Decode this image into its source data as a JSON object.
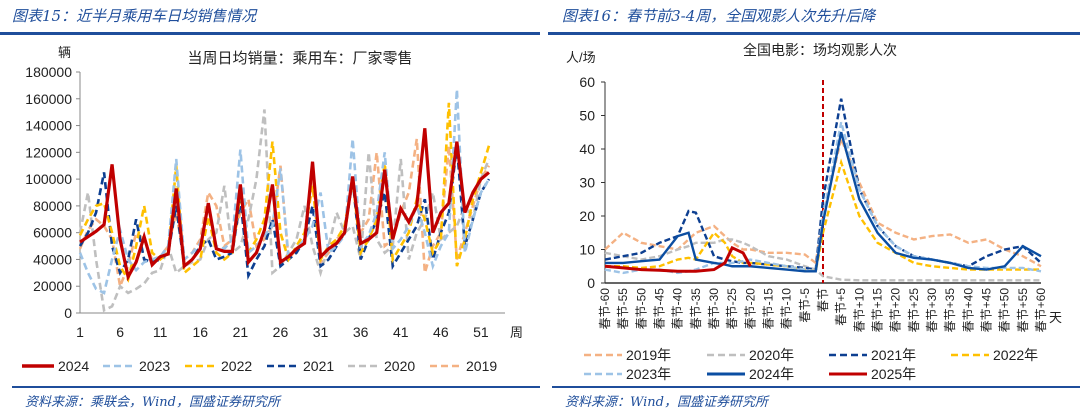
{
  "left": {
    "header": "图表15：近半月乘用车日均销售情况",
    "source": "资料来源：乘联会，Wind，国盛证券研究所"
  },
  "right": {
    "header": "图表16：春节前3-4周，全国观影人次先升后降",
    "source": "资料来源：Wind，国盛证券研究所"
  },
  "chart_data": [
    {
      "type": "line",
      "title": "当周日均销量：乘用车：厂家零售",
      "ylabel": "辆",
      "xlabel": "周",
      "ylim": [
        0,
        180000
      ],
      "yticks": [
        0,
        20000,
        40000,
        60000,
        80000,
        100000,
        120000,
        140000,
        160000,
        180000
      ],
      "xticks": [
        1,
        6,
        11,
        16,
        21,
        26,
        31,
        36,
        41,
        46,
        51
      ],
      "xlim": [
        1,
        54
      ],
      "grid": false,
      "legend": "bottom",
      "x_start": 1,
      "series": [
        {
          "name": "2024",
          "color": "#C00000",
          "style": "solid",
          "values": [
            53000,
            57000,
            61000,
            66000,
            111000,
            55000,
            27000,
            38000,
            57000,
            36000,
            42000,
            44000,
            93000,
            35000,
            40000,
            48000,
            82000,
            48000,
            46000,
            46000,
            96000,
            38000,
            45000,
            62000,
            96000,
            38000,
            42000,
            48000,
            52000,
            113000,
            42000,
            48000,
            52000,
            60000,
            102000,
            52000,
            55000,
            60000,
            107000,
            55000,
            78000,
            68000,
            80000,
            138000,
            60000,
            75000,
            82000,
            128000,
            75000,
            90000,
            100000,
            105000
          ]
        },
        {
          "name": "2023",
          "color": "#9DC3E6",
          "style": "dashed",
          "values": [
            45000,
            30000,
            18000,
            15000,
            40000,
            62000,
            40000,
            32000,
            38000,
            40000,
            42000,
            50000,
            115000,
            40000,
            45000,
            52000,
            80000,
            50000,
            48000,
            55000,
            122000,
            45000,
            50000,
            58000,
            65000,
            108000,
            42000,
            48000,
            55000,
            65000,
            90000,
            45000,
            50000,
            58000,
            130000,
            50000,
            58000,
            75000,
            120000,
            48000,
            55000,
            65000,
            80000,
            60000,
            35000,
            50000,
            60000,
            167000,
            45000,
            70000,
            90000,
            100000
          ]
        },
        {
          "name": "2022",
          "color": "#FFC000",
          "style": "dashed",
          "values": [
            58000,
            70000,
            80000,
            82000,
            60000,
            35000,
            25000,
            50000,
            80000,
            45000,
            40000,
            45000,
            110000,
            30000,
            35000,
            40000,
            72000,
            45000,
            40000,
            45000,
            90000,
            45000,
            55000,
            70000,
            128000,
            60000,
            40000,
            50000,
            60000,
            95000,
            40000,
            50000,
            55000,
            65000,
            100000,
            45000,
            55000,
            70000,
            112000,
            40000,
            50000,
            60000,
            85000,
            70000,
            45000,
            55000,
            157000,
            35000,
            55000,
            85000,
            105000,
            125000
          ]
        },
        {
          "name": "2021",
          "color": "#0D3F91",
          "style": "dashed",
          "values": [
            50000,
            60000,
            75000,
            105000,
            50000,
            30000,
            40000,
            70000,
            40000,
            38000,
            40000,
            45000,
            80000,
            35000,
            40000,
            50000,
            55000,
            40000,
            42000,
            45000,
            85000,
            28000,
            40000,
            50000,
            70000,
            35000,
            40000,
            45000,
            55000,
            80000,
            35000,
            40000,
            50000,
            60000,
            100000,
            40000,
            55000,
            70000,
            90000,
            35000,
            45000,
            55000,
            65000,
            85000,
            40000,
            60000,
            75000,
            125000,
            50000,
            70000,
            90000,
            100000
          ]
        },
        {
          "name": "2020",
          "color": "#BFBFBF",
          "style": "dashed",
          "values": [
            60000,
            90000,
            40000,
            2000,
            5000,
            20000,
            15000,
            18000,
            22000,
            30000,
            32000,
            50000,
            30000,
            35000,
            38000,
            40000,
            55000,
            60000,
            95000,
            45000,
            50000,
            70000,
            100000,
            152000,
            30000,
            35000,
            45000,
            55000,
            80000,
            50000,
            30000,
            50000,
            75000,
            60000,
            65000,
            40000,
            120000,
            55000,
            45000,
            50000,
            115000,
            40000,
            60000,
            70000,
            90000,
            55000,
            60000,
            65000,
            80000,
            70000,
            100000,
            115000
          ]
        },
        {
          "name": "2019",
          "color": "#F4B183",
          "style": "dashed",
          "values": [
            48000,
            62000,
            70000,
            65000,
            55000,
            20000,
            35000,
            60000,
            55000,
            40000,
            42000,
            50000,
            75000,
            40000,
            45000,
            55000,
            90000,
            80000,
            50000,
            55000,
            75000,
            85000,
            50000,
            55000,
            65000,
            110000,
            40000,
            48000,
            55000,
            105000,
            38000,
            45000,
            55000,
            62000,
            98000,
            60000,
            70000,
            120000,
            50000,
            55000,
            75000,
            90000,
            130000,
            30000,
            50000,
            60000,
            125000,
            40000,
            60000,
            80000,
            100000,
            110000
          ]
        }
      ]
    },
    {
      "type": "line",
      "title": "全国电影：场均观影人次",
      "ylabel": "人/场",
      "xlabel": "天",
      "ylim": [
        0,
        60
      ],
      "yticks": [
        0,
        10,
        20,
        30,
        40,
        50,
        60
      ],
      "xlim": [
        -60,
        60
      ],
      "xtick_values": [
        -60,
        -55,
        -50,
        -45,
        -40,
        -35,
        -30,
        -25,
        -20,
        -15,
        -10,
        -5,
        0,
        5,
        10,
        15,
        20,
        25,
        30,
        35,
        40,
        45,
        50,
        55,
        60
      ],
      "xtick_labels": [
        "春节-60",
        "春节-55",
        "春节-50",
        "春节-45",
        "春节-40",
        "春节-35",
        "春节-30",
        "春节-25",
        "春节-20",
        "春节-15",
        "春节-10",
        "春节-5",
        "春节",
        "春节+5",
        "春节+10",
        "春节+15",
        "春节+20",
        "春节+25",
        "春节+30",
        "春节+35",
        "春节+40",
        "春节+45",
        "春节+50",
        "春节+55",
        "春节+60"
      ],
      "reference_line_x": 0,
      "reference_line_color": "#C00000",
      "grid": false,
      "legend": "bottom",
      "x": [
        -60,
        -55,
        -50,
        -45,
        -40,
        -37,
        -35,
        -30,
        -27,
        -25,
        -22,
        -20,
        -15,
        -10,
        -5,
        -2,
        0,
        5,
        10,
        15,
        20,
        25,
        30,
        35,
        40,
        45,
        50,
        55,
        60
      ],
      "series": [
        {
          "name": "2019年",
          "color": "#F4B183",
          "style": "dashed",
          "values": [
            10,
            15,
            12,
            11,
            10,
            13,
            15,
            17,
            14,
            12,
            10,
            10,
            9,
            9,
            8.5,
            6,
            20,
            43,
            30,
            18,
            15,
            13,
            14,
            14.5,
            12,
            13,
            10,
            8,
            5
          ]
        },
        {
          "name": "2020年",
          "color": "#BFBFBF",
          "style": "dashed",
          "values": [
            9,
            8,
            7,
            8,
            10,
            11,
            12,
            12,
            13,
            13,
            12,
            11,
            8,
            7,
            5,
            4,
            2,
            1,
            0.8,
            0.8,
            0.8,
            0.8,
            0.8,
            0.8,
            0.8,
            0.8,
            0.8,
            0.8,
            0.8
          ]
        },
        {
          "name": "2021年",
          "color": "#0D3F91",
          "style": "dashed",
          "values": [
            7,
            8,
            9,
            12,
            14,
            21.5,
            21,
            8,
            7,
            6.5,
            6,
            6,
            5.5,
            5,
            4.5,
            4,
            25,
            55,
            28,
            17,
            11,
            8,
            7,
            6,
            5,
            8,
            10,
            11,
            6
          ]
        },
        {
          "name": "2022年",
          "color": "#FFC000",
          "style": "dashed",
          "values": [
            5,
            5,
            4.5,
            5,
            7,
            7.5,
            7,
            15,
            12,
            8,
            6,
            6,
            5.5,
            5,
            4,
            3.5,
            15,
            36,
            20,
            12,
            9,
            6,
            5,
            4.5,
            4,
            4,
            4,
            4,
            4
          ]
        },
        {
          "name": "2023年",
          "color": "#9DC3E6",
          "style": "dashed",
          "values": [
            4,
            3,
            4,
            4,
            3,
            3.5,
            4,
            6,
            6,
            6,
            6.5,
            7,
            6,
            5,
            4,
            3.5,
            20,
            48,
            28,
            17,
            11,
            8,
            7,
            6,
            5,
            4.5,
            4.5,
            4.5,
            3.5
          ]
        },
        {
          "name": "2024年",
          "color": "#0B4EA2",
          "style": "solid",
          "values": [
            6,
            6,
            6.5,
            7,
            14,
            15,
            7,
            6,
            5.5,
            5,
            5,
            5,
            4.5,
            4,
            3.5,
            3.5,
            18,
            45,
            25,
            15,
            9,
            7.5,
            7,
            6,
            4.5,
            4,
            5,
            11,
            8
          ]
        },
        {
          "name": "2025年",
          "color": "#C00000",
          "style": "solid",
          "values": [
            5,
            4.5,
            4,
            3.8,
            3.5,
            3.5,
            3.5,
            4,
            6,
            10.5,
            9,
            5,
            null,
            null,
            null,
            null,
            null,
            null,
            null,
            null,
            null,
            null,
            null,
            null,
            null,
            null,
            null,
            null,
            null
          ]
        }
      ]
    }
  ]
}
